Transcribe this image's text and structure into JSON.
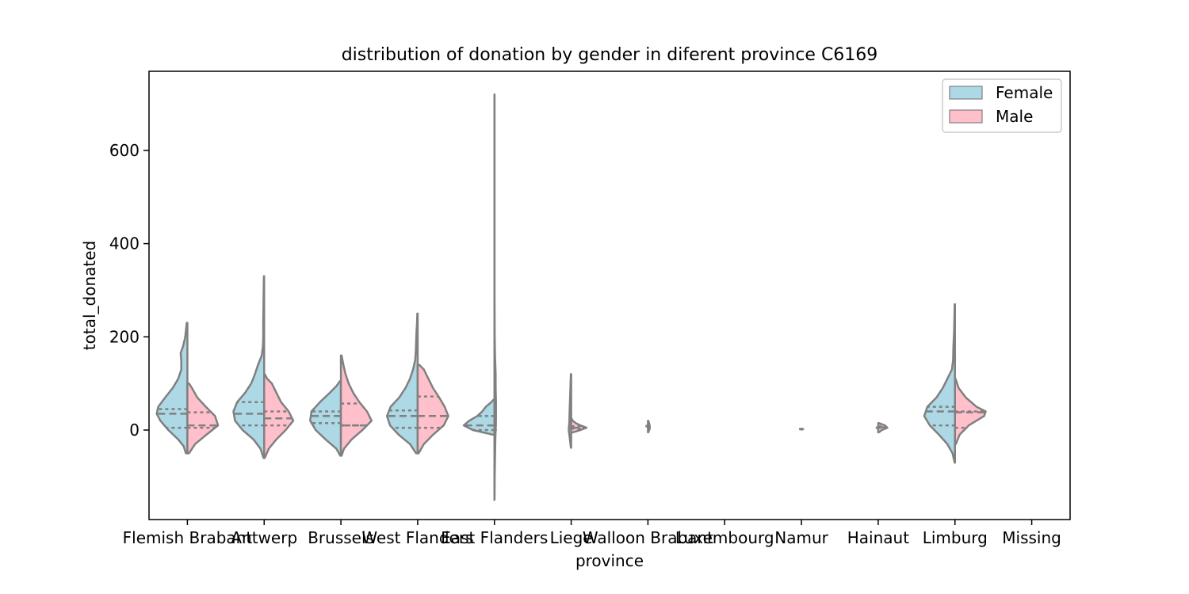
{
  "chart_data": {
    "type": "violin",
    "split_by": "gender",
    "title": "distribution of donation by gender in diferent province C6169",
    "xlabel": "province",
    "ylabel": "total_donated",
    "ylim": [
      -190,
      770
    ],
    "yticks": [
      0,
      200,
      400,
      600
    ],
    "categories": [
      "Flemish Brabant",
      "Antwerp",
      "Brussels",
      "West Flanders",
      "East Flanders",
      "Liege",
      "Walloon Brabant",
      "Luxembourg",
      "Namur",
      "Hainaut",
      "Limburg",
      "Missing"
    ],
    "legend": {
      "placement": "upper-right",
      "entries": [
        "Female",
        "Male"
      ]
    },
    "series": [
      {
        "name": "Female",
        "color": "#add8e6",
        "violins": [
          {
            "category": "Flemish Brabant",
            "min": -50,
            "max": 230,
            "profile": [
              [
                -50,
                0.05
              ],
              [
                -35,
                0.12
              ],
              [
                -20,
                0.3
              ],
              [
                0,
                0.62
              ],
              [
                20,
                0.88
              ],
              [
                35,
                1
              ],
              [
                50,
                0.95
              ],
              [
                70,
                0.72
              ],
              [
                90,
                0.48
              ],
              [
                110,
                0.3
              ],
              [
                130,
                0.2
              ],
              [
                150,
                0.2
              ],
              [
                165,
                0.22
              ],
              [
                180,
                0.14
              ],
              [
                200,
                0.07
              ],
              [
                230,
                0.02
              ]
            ],
            "quartiles": [
              5,
              35,
              45
            ]
          },
          {
            "category": "Antwerp",
            "min": -60,
            "max": 330,
            "profile": [
              [
                -60,
                0.02
              ],
              [
                -40,
                0.12
              ],
              [
                -20,
                0.35
              ],
              [
                0,
                0.7
              ],
              [
                20,
                0.95
              ],
              [
                40,
                1
              ],
              [
                60,
                0.88
              ],
              [
                80,
                0.62
              ],
              [
                100,
                0.42
              ],
              [
                120,
                0.3
              ],
              [
                140,
                0.2
              ],
              [
                160,
                0.08
              ],
              [
                180,
                0.04
              ],
              [
                200,
                0.03
              ],
              [
                230,
                0.03
              ],
              [
                280,
                0.02
              ],
              [
                330,
                0.01
              ]
            ],
            "quartiles": [
              10,
              35,
              60
            ]
          },
          {
            "category": "Brussels",
            "min": -55,
            "max": 105,
            "profile": [
              [
                -55,
                0.02
              ],
              [
                -40,
                0.15
              ],
              [
                -20,
                0.5
              ],
              [
                0,
                0.82
              ],
              [
                20,
                1
              ],
              [
                40,
                0.96
              ],
              [
                60,
                0.68
              ],
              [
                80,
                0.36
              ],
              [
                95,
                0.14
              ],
              [
                105,
                0.03
              ]
            ],
            "quartiles": [
              15,
              30,
              40
            ]
          },
          {
            "category": "West Flanders",
            "min": -50,
            "max": 250,
            "profile": [
              [
                -50,
                0.05
              ],
              [
                -30,
                0.25
              ],
              [
                -10,
                0.62
              ],
              [
                10,
                0.9
              ],
              [
                30,
                1
              ],
              [
                50,
                0.88
              ],
              [
                70,
                0.6
              ],
              [
                90,
                0.4
              ],
              [
                110,
                0.25
              ],
              [
                130,
                0.15
              ],
              [
                150,
                0.08
              ],
              [
                170,
                0.06
              ],
              [
                190,
                0.05
              ],
              [
                210,
                0.04
              ],
              [
                230,
                0.02
              ],
              [
                250,
                0.01
              ]
            ],
            "quartiles": [
              5,
              30,
              42
            ]
          },
          {
            "category": "East Flanders",
            "min": -10,
            "max": 65,
            "profile": [
              [
                -10,
                0.04
              ],
              [
                0,
                0.7
              ],
              [
                10,
                1
              ],
              [
                20,
                0.82
              ],
              [
                30,
                0.56
              ],
              [
                40,
                0.4
              ],
              [
                50,
                0.28
              ],
              [
                60,
                0.1
              ],
              [
                65,
                0.03
              ]
            ],
            "quartiles": [
              0,
              10,
              30
            ]
          },
          {
            "category": "Liege",
            "min": -38,
            "max": 120,
            "profile": [
              [
                -38,
                0.01
              ],
              [
                -20,
                0.04
              ],
              [
                0,
                0.08
              ],
              [
                20,
                0.06
              ],
              [
                40,
                0.05
              ],
              [
                60,
                0.04
              ],
              [
                80,
                0.03
              ],
              [
                100,
                0.02
              ],
              [
                120,
                0.01
              ]
            ],
            "quartiles": [
              5,
              15,
              50
            ]
          },
          {
            "category": "Walloon Brabant",
            "min": 7,
            "max": 10,
            "profile": [
              [
                7,
                0.01
              ],
              [
                10,
                0.01
              ]
            ],
            "quartiles": [
              8,
              8,
              9
            ]
          },
          {
            "category": "Namur",
            "min": 1,
            "max": 3,
            "profile": [
              [
                1,
                0.01
              ],
              [
                3,
                0.01
              ]
            ],
            "quartiles": [
              2,
              2,
              2
            ]
          },
          {
            "category": "Hainaut",
            "min": 4,
            "max": 6,
            "profile": [
              [
                4,
                0.01
              ],
              [
                6,
                0.01
              ]
            ],
            "quartiles": [
              5,
              5,
              5
            ]
          },
          {
            "category": "Limburg",
            "min": -70,
            "max": 270,
            "profile": [
              [
                -70,
                0.01
              ],
              [
                -50,
                0.08
              ],
              [
                -30,
                0.25
              ],
              [
                -10,
                0.52
              ],
              [
                10,
                0.82
              ],
              [
                30,
                1
              ],
              [
                50,
                0.9
              ],
              [
                70,
                0.6
              ],
              [
                90,
                0.4
              ],
              [
                110,
                0.25
              ],
              [
                130,
                0.1
              ],
              [
                150,
                0.06
              ],
              [
                180,
                0.05
              ],
              [
                210,
                0.03
              ],
              [
                240,
                0.02
              ],
              [
                270,
                0.01
              ]
            ],
            "quartiles": [
              10,
              40,
              50
            ]
          }
        ]
      },
      {
        "name": "Male",
        "color": "#ffc0cb",
        "violins": [
          {
            "category": "Flemish Brabant",
            "min": -50,
            "max": 100,
            "profile": [
              [
                -50,
                0.05
              ],
              [
                -30,
                0.25
              ],
              [
                -10,
                0.62
              ],
              [
                10,
                1
              ],
              [
                30,
                0.9
              ],
              [
                50,
                0.6
              ],
              [
                70,
                0.32
              ],
              [
                90,
                0.15
              ],
              [
                100,
                0.05
              ]
            ],
            "quartiles": [
              5,
              10,
              38
            ]
          },
          {
            "category": "Antwerp",
            "min": -60,
            "max": 120,
            "profile": [
              [
                -60,
                0.02
              ],
              [
                -40,
                0.15
              ],
              [
                -20,
                0.4
              ],
              [
                0,
                0.7
              ],
              [
                20,
                0.95
              ],
              [
                40,
                0.8
              ],
              [
                60,
                0.55
              ],
              [
                80,
                0.4
              ],
              [
                100,
                0.25
              ],
              [
                110,
                0.1
              ],
              [
                120,
                0.02
              ]
            ],
            "quartiles": [
              10,
              25,
              40
            ]
          },
          {
            "category": "Brussels",
            "min": -55,
            "max": 160,
            "profile": [
              [
                -55,
                0.02
              ],
              [
                -40,
                0.1
              ],
              [
                -20,
                0.35
              ],
              [
                0,
                0.7
              ],
              [
                20,
                1
              ],
              [
                40,
                0.85
              ],
              [
                60,
                0.6
              ],
              [
                80,
                0.4
              ],
              [
                100,
                0.25
              ],
              [
                120,
                0.15
              ],
              [
                140,
                0.08
              ],
              [
                160,
                0.02
              ]
            ],
            "quartiles": [
              10,
              10,
              57
            ]
          },
          {
            "category": "West Flanders",
            "min": -50,
            "max": 140,
            "profile": [
              [
                -50,
                0.03
              ],
              [
                -30,
                0.2
              ],
              [
                -10,
                0.5
              ],
              [
                10,
                0.85
              ],
              [
                30,
                1
              ],
              [
                50,
                0.88
              ],
              [
                70,
                0.7
              ],
              [
                90,
                0.5
              ],
              [
                110,
                0.35
              ],
              [
                130,
                0.2
              ],
              [
                140,
                0.05
              ]
            ],
            "quartiles": [
              5,
              30,
              72
            ]
          },
          {
            "category": "East Flanders",
            "min": -150,
            "max": 720,
            "profile": [
              [
                -150,
                0.005
              ],
              [
                -100,
                0.01
              ],
              [
                -60,
                0.02
              ],
              [
                -20,
                0.03
              ],
              [
                0,
                0.04
              ],
              [
                20,
                0.05
              ],
              [
                40,
                0.05
              ],
              [
                60,
                0.05
              ],
              [
                90,
                0.04
              ],
              [
                120,
                0.04
              ],
              [
                160,
                0.02
              ],
              [
                200,
                0.01
              ],
              [
                300,
                0.005
              ],
              [
                500,
                0.005
              ],
              [
                720,
                0.005
              ]
            ],
            "quartiles": [
              0,
              10,
              40
            ]
          },
          {
            "category": "Liege",
            "min": -5,
            "max": 25,
            "profile": [
              [
                -5,
                0.05
              ],
              [
                0,
                0.3
              ],
              [
                5,
                0.5
              ],
              [
                10,
                0.3
              ],
              [
                15,
                0.15
              ],
              [
                20,
                0.05
              ],
              [
                25,
                0.01
              ]
            ],
            "quartiles": [
              3,
              5,
              8
            ]
          },
          {
            "category": "Walloon Brabant",
            "min": -5,
            "max": 20,
            "profile": [
              [
                -5,
                0.01
              ],
              [
                3,
                0.06
              ],
              [
                8,
                0.06
              ],
              [
                14,
                0.04
              ],
              [
                20,
                0.01
              ]
            ],
            "quartiles": [
              8,
              9,
              10
            ]
          },
          {
            "category": "Namur",
            "min": 1,
            "max": 3,
            "profile": [
              [
                1,
                0.01
              ],
              [
                3,
                0.01
              ]
            ],
            "quartiles": [
              2,
              2,
              2
            ]
          },
          {
            "category": "Hainaut",
            "min": -5,
            "max": 15,
            "profile": [
              [
                -5,
                0.02
              ],
              [
                0,
                0.12
              ],
              [
                5,
                0.3
              ],
              [
                10,
                0.22
              ],
              [
                15,
                0.02
              ]
            ],
            "quartiles": [
              5,
              6,
              8
            ]
          },
          {
            "category": "Limburg",
            "min": -30,
            "max": 110,
            "profile": [
              [
                -30,
                0.03
              ],
              [
                -10,
                0.15
              ],
              [
                10,
                0.45
              ],
              [
                30,
                0.95
              ],
              [
                40,
                1
              ],
              [
                50,
                0.7
              ],
              [
                70,
                0.35
              ],
              [
                90,
                0.12
              ],
              [
                110,
                0.02
              ]
            ],
            "quartiles": [
              5,
              38,
              40
            ]
          }
        ]
      }
    ]
  }
}
